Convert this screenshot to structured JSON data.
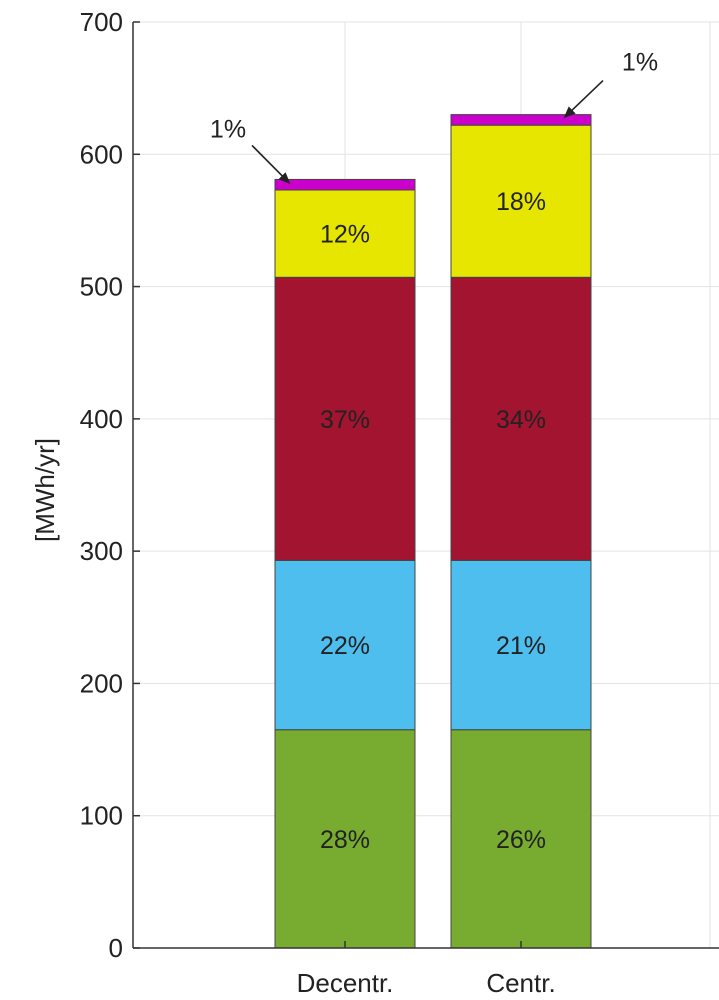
{
  "chart_data": {
    "type": "bar",
    "stacked": true,
    "title": "",
    "xlabel": "",
    "ylabel": "[MWh/yr]",
    "ylim": [
      0,
      700
    ],
    "yticks": [
      "0",
      "100",
      "200",
      "300",
      "400",
      "500",
      "600",
      "700"
    ],
    "grid": true,
    "categories": [
      "Decentr.",
      "Centr."
    ],
    "series": [
      {
        "color": "#77ac30",
        "values": [
          165,
          165
        ],
        "labels": [
          "28%",
          "26%"
        ]
      },
      {
        "color": "#4dbeee",
        "values": [
          128,
          128
        ],
        "labels": [
          "22%",
          "21%"
        ]
      },
      {
        "color": "#a2142f",
        "values": [
          214,
          214
        ],
        "labels": [
          "37%",
          "34%"
        ]
      },
      {
        "color": "#e6e600",
        "values": [
          66,
          115
        ],
        "labels": [
          "12%",
          "18%"
        ]
      },
      {
        "color": "#cc00cc",
        "values": [
          8,
          8
        ],
        "labels": [
          "1%",
          "1%"
        ]
      }
    ]
  }
}
